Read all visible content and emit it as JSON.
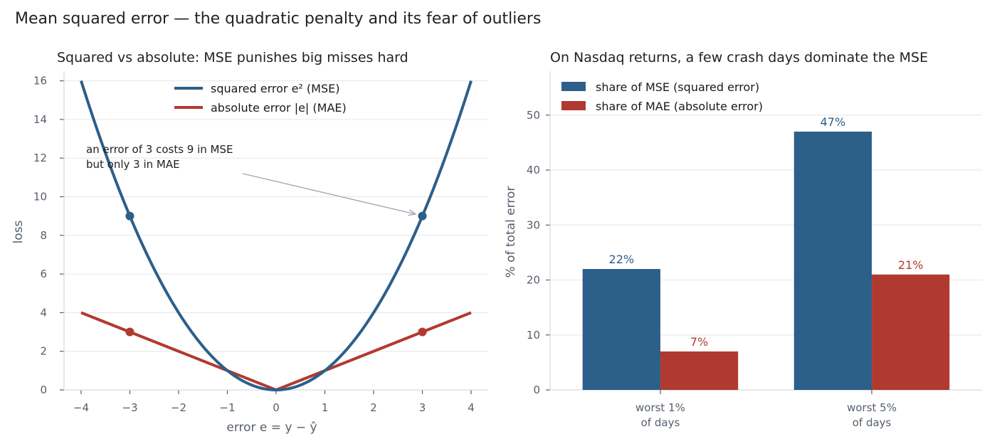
{
  "figure_title": "Mean squared error — the quadratic penalty and its fear of outliers",
  "chart_data": [
    {
      "type": "line",
      "title": "Squared vs absolute: MSE punishes big misses hard",
      "xlabel": "error  e = y − ŷ",
      "ylabel": "loss",
      "xlim": [
        -4.35,
        4.35
      ],
      "ylim": [
        0,
        16.5
      ],
      "xticks": [
        -4,
        -3,
        -2,
        -1,
        0,
        1,
        2,
        3,
        4
      ],
      "xtick_labels": [
        "−4",
        "−3",
        "−2",
        "−1",
        "0",
        "1",
        "2",
        "3",
        "4"
      ],
      "yticks": [
        0,
        2,
        4,
        6,
        8,
        10,
        12,
        14,
        16
      ],
      "ytick_labels": [
        "0",
        "2",
        "4",
        "6",
        "8",
        "10",
        "12",
        "14",
        "16"
      ],
      "grid": "horizontal",
      "legend_position": "upper-center",
      "series": [
        {
          "name": "squared error  e²  (MSE)",
          "function": "e^2",
          "x": [
            -4,
            -3.5,
            -3,
            -2.5,
            -2,
            -1.5,
            -1,
            -0.5,
            0,
            0.5,
            1,
            1.5,
            2,
            2.5,
            3,
            3.5,
            4
          ],
          "y": [
            16,
            12.25,
            9,
            6.25,
            4,
            2.25,
            1,
            0.25,
            0,
            0.25,
            1,
            2.25,
            4,
            6.25,
            9,
            12.25,
            16
          ],
          "color": "#2c5f8a",
          "markers": [
            {
              "x": -3,
              "y": 9
            },
            {
              "x": 3,
              "y": 9
            }
          ]
        },
        {
          "name": "absolute error  |e|  (MAE)",
          "function": "|e|",
          "x": [
            -4,
            0,
            4
          ],
          "y": [
            4,
            0,
            4
          ],
          "color": "#b03a30",
          "markers": [
            {
              "x": -3,
              "y": 3
            },
            {
              "x": 3,
              "y": 3
            }
          ]
        }
      ],
      "annotation": {
        "lines": [
          "an error of 3 costs 9 in MSE",
          "but only 3 in MAE"
        ],
        "arrow_to": {
          "x": 3,
          "y": 9
        },
        "arrow_color": "#9aa5b1"
      }
    },
    {
      "type": "bar",
      "title": "On Nasdaq returns, a few crash days dominate the MSE",
      "ylabel": "% of total error",
      "categories": [
        [
          "worst 1%",
          "of days"
        ],
        [
          "worst 5%",
          "of days"
        ]
      ],
      "ylim": [
        0,
        58
      ],
      "yticks": [
        0,
        10,
        20,
        30,
        40,
        50
      ],
      "ytick_labels": [
        "0",
        "10",
        "20",
        "30",
        "40",
        "50"
      ],
      "grid": "horizontal",
      "legend_position": "upper-left",
      "series": [
        {
          "name": "share of MSE (squared error)",
          "values": [
            22,
            47
          ],
          "labels": [
            "22%",
            "47%"
          ],
          "color": "#2c5f8a"
        },
        {
          "name": "share of MAE (absolute error)",
          "values": [
            7,
            21
          ],
          "labels": [
            "7%",
            "21%"
          ],
          "color": "#b03a30"
        }
      ]
    }
  ]
}
